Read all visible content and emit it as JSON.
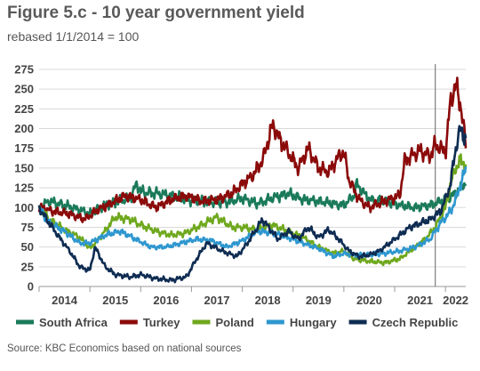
{
  "header": {
    "title": "Figure 5.c - 10 year government yield",
    "subtitle": "rebased 1/1/2014 = 100"
  },
  "footer": {
    "source": "Source: KBC Economics based on national sources"
  },
  "colors": {
    "South Africa": "#1a7a5a",
    "Turkey": "#8b0a0a",
    "Poland": "#6fa81e",
    "Hungary": "#2e97cf",
    "Czech Republic": "#0f2c52",
    "grid": "#d9d9d9",
    "marker": "#666666"
  },
  "chart_data": {
    "type": "line",
    "title": "Figure 5.c - 10 year government yield",
    "subtitle": "rebased 1/1/2014 = 100",
    "xlabel": "",
    "ylabel": "",
    "ylim": [
      0,
      275
    ],
    "xlim": [
      2014.0,
      2022.4
    ],
    "yticks": [
      0,
      25,
      50,
      75,
      100,
      125,
      150,
      175,
      200,
      225,
      250,
      275
    ],
    "xtick_labels": [
      "2014",
      "2015",
      "2016",
      "2017",
      "2018",
      "2019",
      "2020",
      "2021",
      "2022"
    ],
    "grid": true,
    "legend_position": "bottom",
    "vertical_marker_x": 2021.8,
    "series": [
      {
        "name": "South Africa",
        "x": [
          2014.0,
          2014.2,
          2014.5,
          2014.8,
          2015.0,
          2015.2,
          2015.5,
          2015.8,
          2015.92,
          2016.0,
          2016.3,
          2016.6,
          2016.9,
          2017.2,
          2017.5,
          2017.8,
          2018.0,
          2018.3,
          2018.6,
          2018.9,
          2019.2,
          2019.5,
          2019.8,
          2020.0,
          2020.2,
          2020.25,
          2020.5,
          2020.8,
          2021.1,
          2021.4,
          2021.7,
          2022.0,
          2022.2,
          2022.4
        ],
        "values": [
          100,
          108,
          103,
          97,
          92,
          100,
          107,
          112,
          130,
          120,
          118,
          115,
          110,
          108,
          106,
          108,
          112,
          105,
          112,
          118,
          110,
          108,
          105,
          103,
          115,
          130,
          110,
          108,
          103,
          100,
          103,
          110,
          118,
          132
        ]
      },
      {
        "name": "Turkey",
        "x": [
          2014.0,
          2014.3,
          2014.6,
          2014.9,
          2015.1,
          2015.4,
          2015.7,
          2016.0,
          2016.3,
          2016.6,
          2016.9,
          2017.2,
          2017.5,
          2017.8,
          2018.0,
          2018.2,
          2018.4,
          2018.6,
          2018.75,
          2018.9,
          2019.1,
          2019.3,
          2019.5,
          2019.7,
          2019.9,
          2020.0,
          2020.1,
          2020.3,
          2020.5,
          2020.8,
          2021.1,
          2021.2,
          2021.5,
          2021.7,
          2021.8,
          2022.0,
          2022.1,
          2022.2,
          2022.3,
          2022.4
        ],
        "values": [
          100,
          95,
          92,
          85,
          95,
          105,
          115,
          110,
          100,
          110,
          115,
          108,
          110,
          118,
          130,
          140,
          160,
          205,
          185,
          170,
          150,
          175,
          150,
          145,
          165,
          170,
          135,
          110,
          100,
          108,
          115,
          160,
          172,
          165,
          180,
          170,
          235,
          255,
          230,
          180
        ]
      },
      {
        "name": "Poland",
        "x": [
          2014.0,
          2014.2,
          2014.5,
          2014.8,
          2015.0,
          2015.2,
          2015.5,
          2015.8,
          2016.0,
          2016.3,
          2016.6,
          2016.9,
          2017.2,
          2017.5,
          2017.8,
          2018.0,
          2018.3,
          2018.6,
          2018.9,
          2019.2,
          2019.5,
          2019.8,
          2020.0,
          2020.2,
          2020.5,
          2020.8,
          2021.1,
          2021.3,
          2021.6,
          2021.8,
          2022.0,
          2022.1,
          2022.2,
          2022.3,
          2022.4
        ],
        "values": [
          100,
          85,
          72,
          62,
          48,
          62,
          88,
          85,
          78,
          70,
          65,
          68,
          78,
          88,
          75,
          75,
          72,
          78,
          70,
          62,
          50,
          42,
          45,
          35,
          32,
          30,
          35,
          45,
          60,
          75,
          100,
          130,
          150,
          160,
          155
        ]
      },
      {
        "name": "Hungary",
        "x": [
          2014.0,
          2014.2,
          2014.5,
          2014.8,
          2015.0,
          2015.3,
          2015.6,
          2015.9,
          2016.2,
          2016.5,
          2016.8,
          2017.1,
          2017.4,
          2017.7,
          2018.0,
          2018.3,
          2018.6,
          2018.9,
          2019.2,
          2019.5,
          2019.8,
          2020.0,
          2020.2,
          2020.5,
          2020.8,
          2021.1,
          2021.4,
          2021.7,
          2021.9,
          2022.1,
          2022.2,
          2022.3,
          2022.4
        ],
        "values": [
          100,
          80,
          70,
          55,
          55,
          65,
          70,
          60,
          50,
          50,
          55,
          60,
          58,
          50,
          58,
          70,
          68,
          62,
          55,
          48,
          38,
          42,
          40,
          40,
          42,
          45,
          50,
          60,
          80,
          95,
          110,
          130,
          148
        ]
      },
      {
        "name": "Czech Republic",
        "x": [
          2014.0,
          2014.2,
          2014.4,
          2014.6,
          2014.8,
          2015.0,
          2015.1,
          2015.3,
          2015.5,
          2015.8,
          2016.0,
          2016.3,
          2016.6,
          2016.9,
          2017.1,
          2017.3,
          2017.6,
          2017.9,
          2018.1,
          2018.4,
          2018.7,
          2018.9,
          2019.1,
          2019.3,
          2019.5,
          2019.7,
          2019.9,
          2020.1,
          2020.3,
          2020.5,
          2020.7,
          2020.9,
          2021.1,
          2021.3,
          2021.5,
          2021.7,
          2021.9,
          2022.0,
          2022.1,
          2022.2,
          2022.3,
          2022.4
        ],
        "values": [
          100,
          80,
          62,
          45,
          25,
          20,
          50,
          25,
          15,
          12,
          15,
          10,
          8,
          12,
          35,
          55,
          45,
          38,
          55,
          85,
          60,
          70,
          60,
          75,
          62,
          72,
          60,
          45,
          38,
          40,
          45,
          55,
          65,
          75,
          80,
          85,
          95,
          110,
          130,
          175,
          200,
          185
        ]
      }
    ]
  }
}
